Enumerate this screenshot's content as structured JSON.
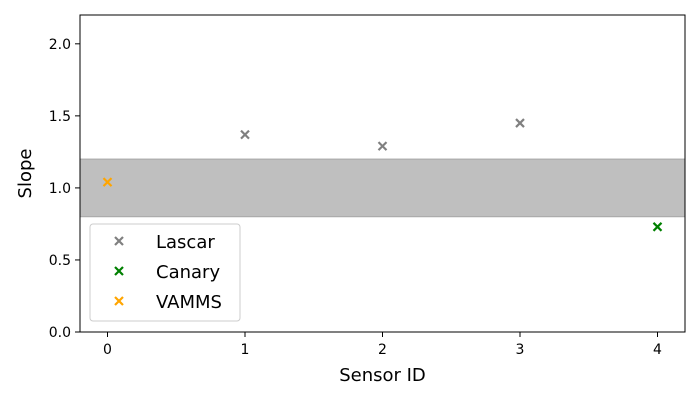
{
  "chart_data": {
    "type": "scatter",
    "title": "",
    "xlabel": "Sensor ID",
    "ylabel": "Slope",
    "xlim": [
      -0.2,
      4.2
    ],
    "ylim": [
      0.0,
      2.2
    ],
    "xticks": [
      0,
      1,
      2,
      3,
      4
    ],
    "xtick_labels": [
      "0",
      "1",
      "2",
      "3",
      "4"
    ],
    "yticks": [
      0.0,
      0.5,
      1.0,
      1.5,
      2.0
    ],
    "ytick_labels": [
      "0.0",
      "0.5",
      "1.0",
      "1.5",
      "2.0"
    ],
    "grid": false,
    "shaded_band": {
      "y_min": 0.8,
      "y_max": 1.2,
      "color": "#bfbfbf"
    },
    "legend_position": "lower-left",
    "series": [
      {
        "name": "Lascar",
        "color": "#808080",
        "marker": "X",
        "points": [
          {
            "x": 1,
            "y": 1.37
          },
          {
            "x": 2,
            "y": 1.29
          },
          {
            "x": 3,
            "y": 1.45
          }
        ]
      },
      {
        "name": "Canary",
        "color": "#008000",
        "marker": "X",
        "points": [
          {
            "x": 4,
            "y": 0.73
          }
        ]
      },
      {
        "name": "VAMMS",
        "color": "#ffa500",
        "marker": "X",
        "points": [
          {
            "x": 0,
            "y": 1.04
          }
        ]
      }
    ]
  }
}
